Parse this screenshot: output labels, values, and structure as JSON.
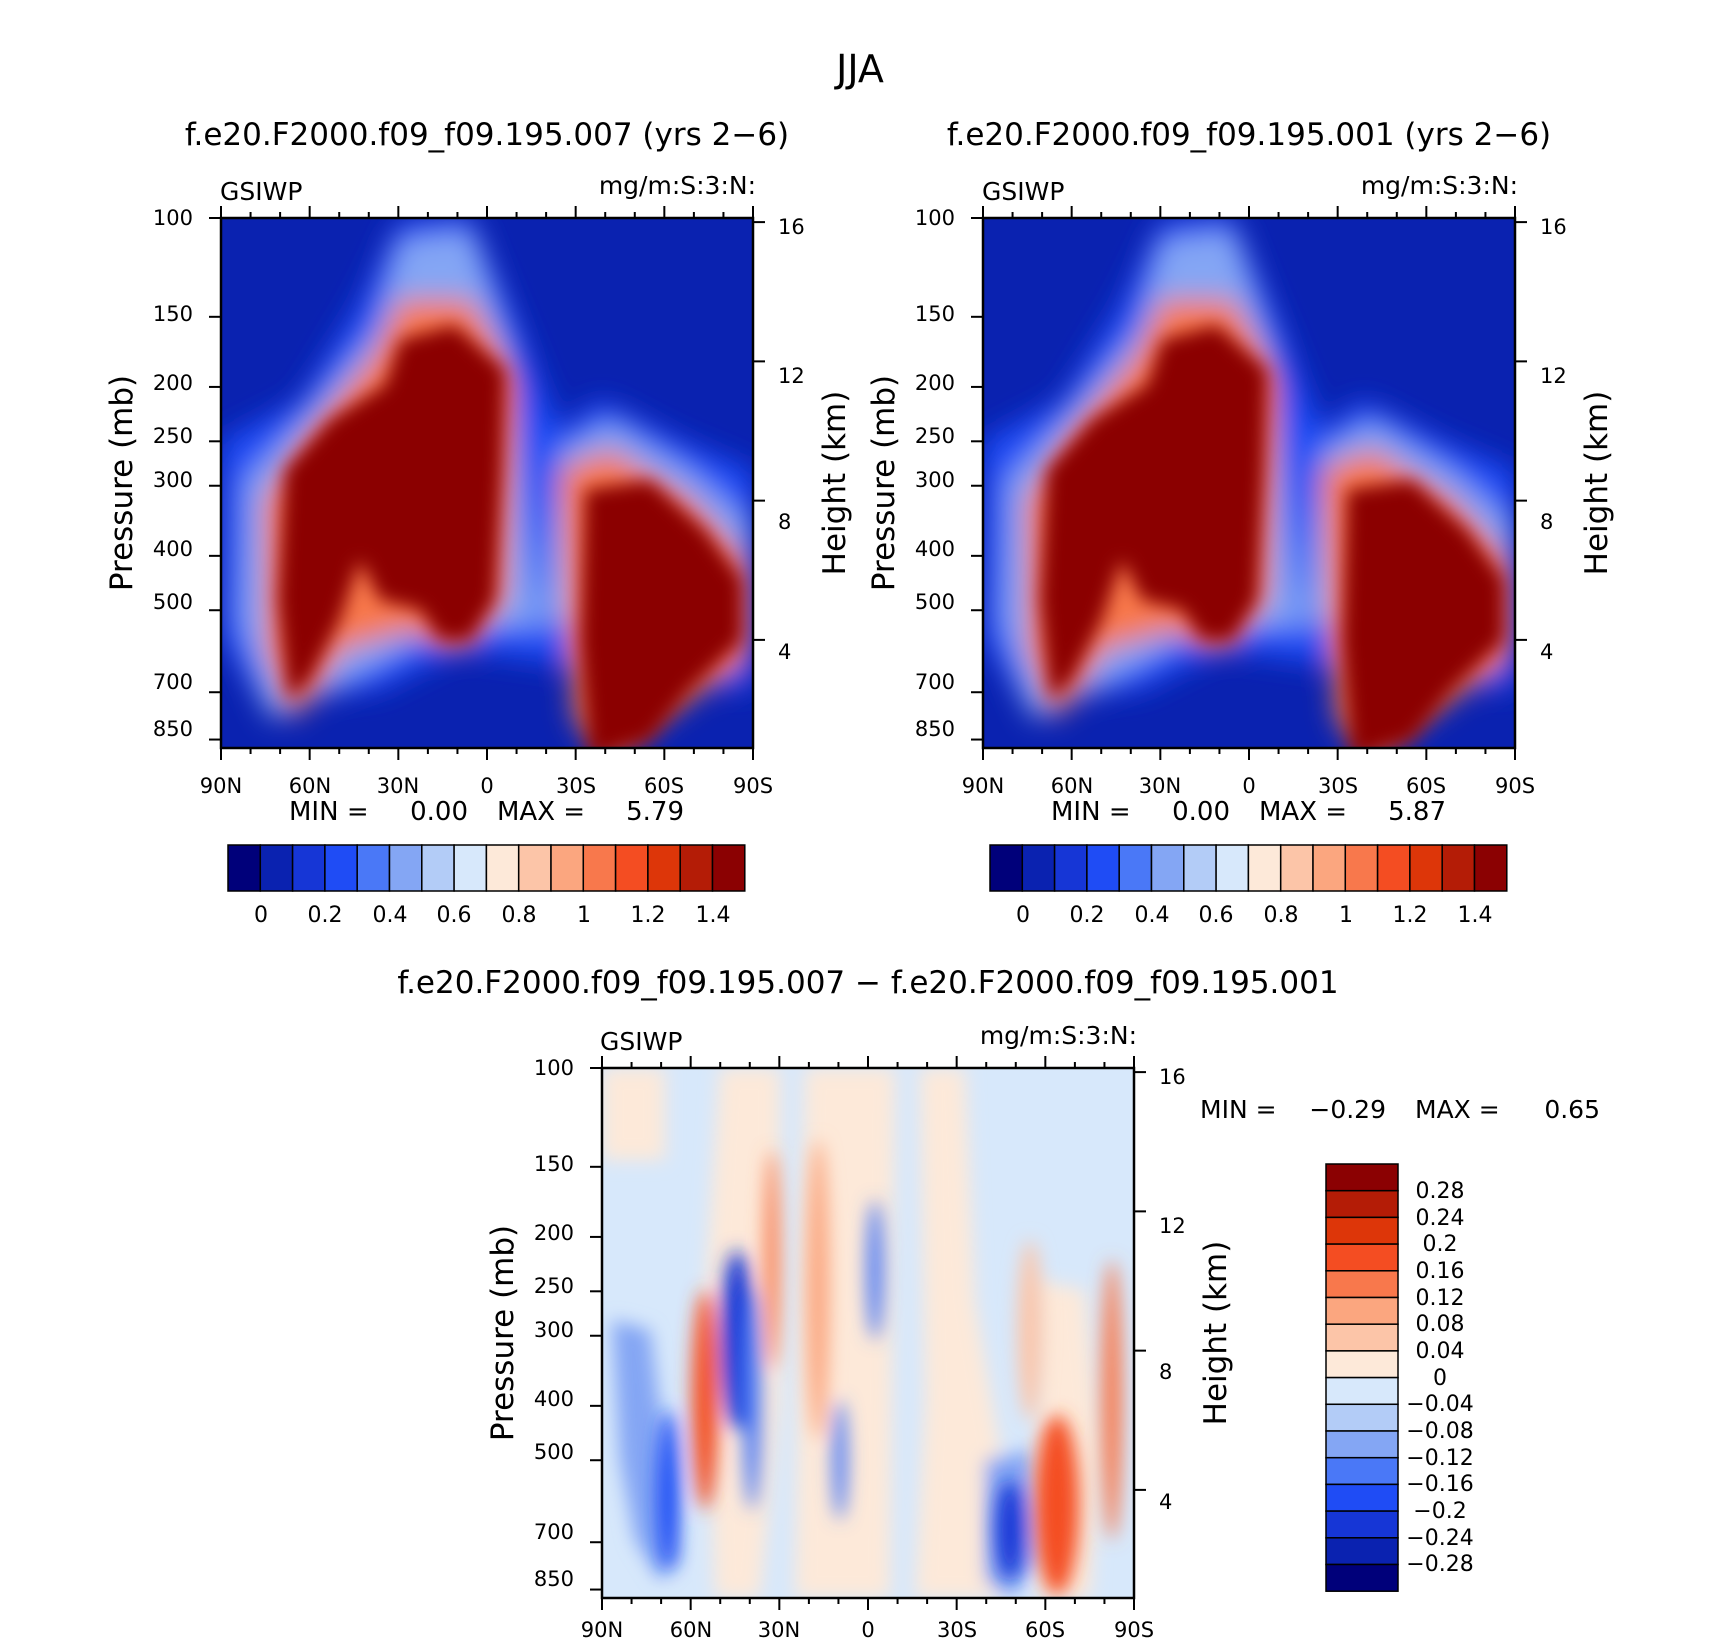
{
  "figure_title": "JJA",
  "chart_data": [
    {
      "type": "heatmap",
      "title": "f.e20.F2000.f09_f09.195.007 (yrs 2−6)",
      "variable": "GSIWP",
      "units": "mg/m:S:3:N:",
      "ylabel": "Pressure (mb)",
      "y2label": "Height (km)",
      "xticks": [
        "90N",
        "60N",
        "30N",
        "0",
        "30S",
        "60S",
        "90S"
      ],
      "yticks": [
        "100",
        "150",
        "200",
        "250",
        "300",
        "400",
        "500",
        "700",
        "850"
      ],
      "y2ticks": [
        "16",
        "12",
        "8",
        "4"
      ],
      "min_label": "MIN =",
      "min_value": "0.00",
      "max_label": "MAX =",
      "max_value": "5.79",
      "colorbar_labels": [
        "0",
        "0.2",
        "0.4",
        "0.6",
        "0.8",
        "1",
        "1.2",
        "1.4"
      ],
      "colorbar_colors": [
        "#00007a",
        "#0a22b0",
        "#1636d6",
        "#1f4cf5",
        "#4a78f7",
        "#84a6f4",
        "#b3ccf7",
        "#d7e8fb",
        "#fde9d9",
        "#fcc5a8",
        "#fba67f",
        "#f8784c",
        "#f44d22",
        "#dd3609",
        "#b41c06",
        "#8b0102"
      ]
    },
    {
      "type": "heatmap",
      "title": "f.e20.F2000.f09_f09.195.001 (yrs 2−6)",
      "variable": "GSIWP",
      "units": "mg/m:S:3:N:",
      "ylabel": "Pressure (mb)",
      "y2label": "Height (km)",
      "xticks": [
        "90N",
        "60N",
        "30N",
        "0",
        "30S",
        "60S",
        "90S"
      ],
      "yticks": [
        "100",
        "150",
        "200",
        "250",
        "300",
        "400",
        "500",
        "700",
        "850"
      ],
      "y2ticks": [
        "16",
        "12",
        "8",
        "4"
      ],
      "min_label": "MIN =",
      "min_value": "0.00",
      "max_label": "MAX =",
      "max_value": "5.87",
      "colorbar_labels": [
        "0",
        "0.2",
        "0.4",
        "0.6",
        "0.8",
        "1",
        "1.2",
        "1.4"
      ],
      "colorbar_colors": [
        "#00007a",
        "#0a22b0",
        "#1636d6",
        "#1f4cf5",
        "#4a78f7",
        "#84a6f4",
        "#b3ccf7",
        "#d7e8fb",
        "#fde9d9",
        "#fcc5a8",
        "#fba67f",
        "#f8784c",
        "#f44d22",
        "#dd3609",
        "#b41c06",
        "#8b0102"
      ]
    },
    {
      "type": "heatmap",
      "title": "f.e20.F2000.f09_f09.195.007 − f.e20.F2000.f09_f09.195.001",
      "variable": "GSIWP",
      "units": "mg/m:S:3:N:",
      "ylabel": "Pressure (mb)",
      "y2label": "Height (km)",
      "xticks": [
        "90N",
        "60N",
        "30N",
        "0",
        "30S",
        "60S",
        "90S"
      ],
      "yticks": [
        "100",
        "150",
        "200",
        "250",
        "300",
        "400",
        "500",
        "700",
        "850"
      ],
      "y2ticks": [
        "16",
        "12",
        "8",
        "4"
      ],
      "min_label": "MIN =",
      "min_value": "−0.29",
      "max_label": "MAX =",
      "max_value": "0.65",
      "colorbar_labels": [
        "0.28",
        "0.24",
        "0.2",
        "0.16",
        "0.12",
        "0.08",
        "0.04",
        "0",
        "−0.04",
        "−0.08",
        "−0.12",
        "−0.16",
        "−0.2",
        "−0.24",
        "−0.28"
      ],
      "colorbar_colors": [
        "#8b0102",
        "#b41c06",
        "#dd3609",
        "#f44d22",
        "#f8784c",
        "#fba67f",
        "#fcc5a8",
        "#fde9d9",
        "#d7e8fb",
        "#b3ccf7",
        "#84a6f4",
        "#4a78f7",
        "#1f4cf5",
        "#1636d6",
        "#0a22b0",
        "#00007a"
      ]
    }
  ]
}
